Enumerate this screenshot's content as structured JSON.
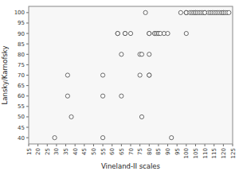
{
  "chart_data": {
    "type": "scatter",
    "xlabel": "Vineland-II scales",
    "ylabel": "Lansky/Karnofsky",
    "x": [
      29,
      36,
      36,
      38,
      55,
      55,
      55,
      63,
      63,
      65,
      65,
      67,
      67,
      70,
      75,
      75,
      76,
      76,
      78,
      80,
      80,
      80,
      80,
      80,
      83,
      83,
      84,
      85,
      85,
      86,
      88,
      90,
      92,
      97,
      100,
      100,
      100,
      100,
      102,
      103,
      104,
      105,
      105,
      106,
      107,
      108,
      109,
      110,
      110,
      112,
      113,
      114,
      115,
      116,
      117,
      118,
      119,
      120,
      120,
      121,
      122,
      123
    ],
    "values": [
      40,
      70,
      60,
      50,
      40,
      60,
      70,
      90,
      90,
      80,
      60,
      90,
      90,
      90,
      80,
      70,
      80,
      50,
      100,
      90,
      90,
      80,
      70,
      70,
      90,
      90,
      90,
      90,
      90,
      90,
      90,
      90,
      40,
      100,
      100,
      100,
      100,
      90,
      100,
      100,
      100,
      100,
      100,
      100,
      100,
      100,
      100,
      100,
      100,
      100,
      100,
      100,
      100,
      100,
      100,
      100,
      100,
      100,
      100,
      100,
      100,
      100
    ],
    "color": "#444444",
    "xlim": [
      15,
      125
    ],
    "ylim": [
      37,
      103
    ],
    "xticks": [
      15,
      20,
      25,
      30,
      35,
      40,
      45,
      50,
      55,
      60,
      65,
      70,
      75,
      80,
      85,
      90,
      95,
      100,
      105,
      110,
      115,
      120,
      125
    ],
    "yticks": [
      40,
      45,
      50,
      55,
      60,
      65,
      70,
      75,
      80,
      85,
      90,
      95,
      100
    ],
    "grid": false
  }
}
